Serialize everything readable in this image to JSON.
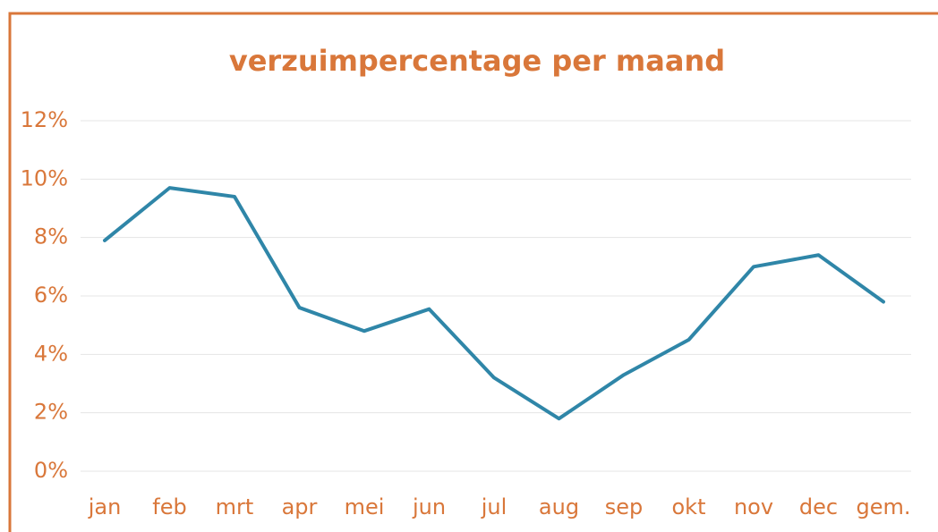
{
  "chart_data": {
    "type": "line",
    "title": "verzuimpercentage per maand",
    "categories": [
      "jan",
      "feb",
      "mrt",
      "apr",
      "mei",
      "jun",
      "jul",
      "aug",
      "sep",
      "okt",
      "nov",
      "dec",
      "gem."
    ],
    "series": [
      {
        "color": "#2f86a8",
        "values": [
          7.9,
          9.7,
          9.4,
          5.6,
          4.8,
          5.55,
          3.2,
          1.8,
          3.3,
          4.5,
          7.0,
          7.4,
          5.8
        ]
      }
    ],
    "ylim": [
      0,
      12
    ],
    "yticks": [
      {
        "value": 0,
        "label": "0%"
      },
      {
        "value": 2,
        "label": "2%"
      },
      {
        "value": 4,
        "label": "4%"
      },
      {
        "value": 6,
        "label": "6%"
      },
      {
        "value": 8,
        "label": "8%"
      },
      {
        "value": 10,
        "label": "10%"
      },
      {
        "value": 12,
        "label": "12%"
      }
    ],
    "grid": true
  }
}
